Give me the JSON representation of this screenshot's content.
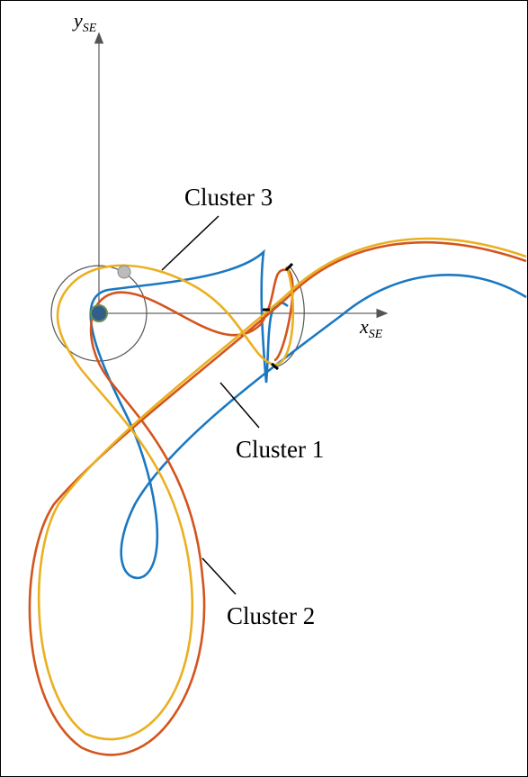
{
  "axes": {
    "y": {
      "base": "y",
      "sub": "SE"
    },
    "x": {
      "base": "x",
      "sub": "SE"
    }
  },
  "labels": {
    "cluster1": "Cluster 1",
    "cluster2": "Cluster 2",
    "cluster3": "Cluster 3"
  }
}
